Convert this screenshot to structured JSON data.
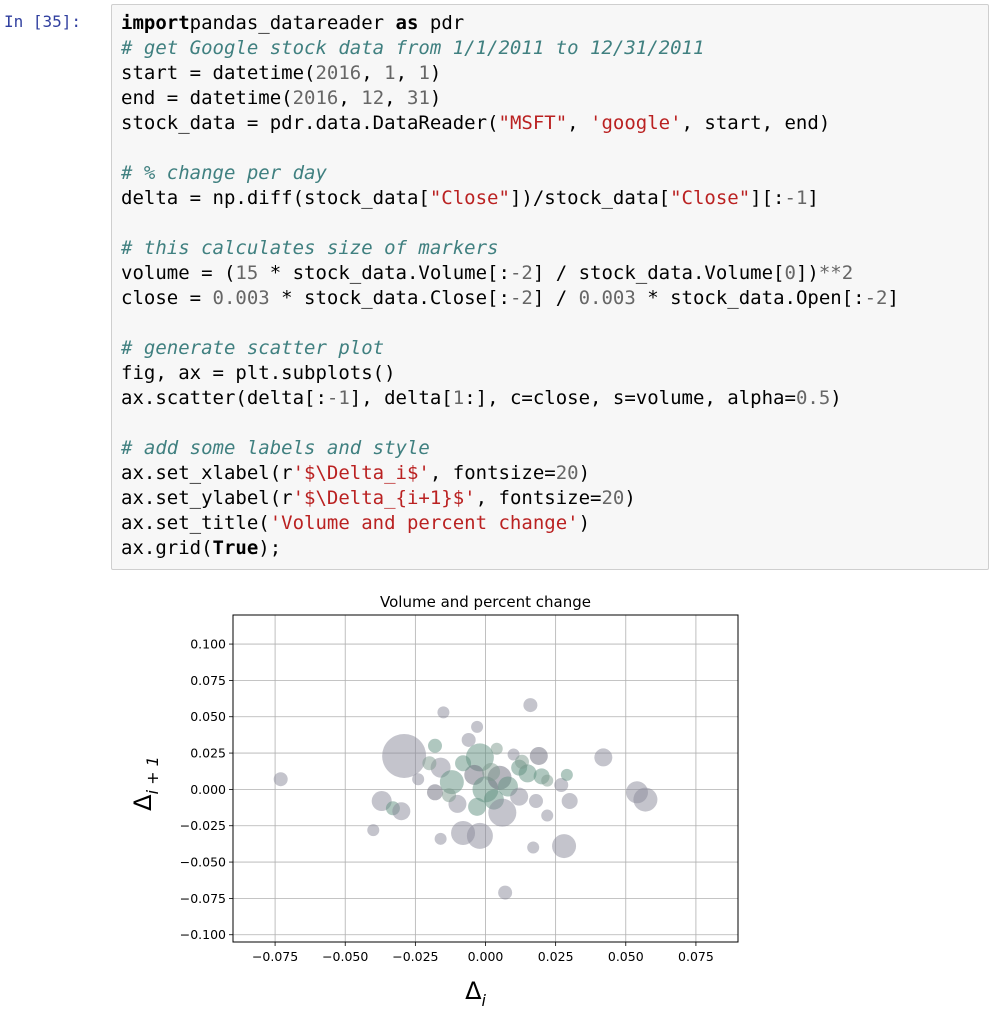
{
  "prompt": "In [35]:",
  "code_lines": [
    [
      [
        "kw2",
        "import"
      ],
      [
        "",
        "pandas_datareader"
      ],
      [
        "kw2",
        " as"
      ],
      [
        "",
        " pdr"
      ]
    ],
    [
      [
        "cm",
        "# get Google stock data from 1/1/2011 to 12/31/2011"
      ]
    ],
    [
      [
        "",
        "start = datetime("
      ],
      [
        "nb",
        "2016"
      ],
      [
        "",
        ", "
      ],
      [
        "nb",
        "1"
      ],
      [
        "",
        ", "
      ],
      [
        "nb",
        "1"
      ],
      [
        "",
        ")"
      ]
    ],
    [
      [
        "",
        "end = datetime("
      ],
      [
        "nb",
        "2016"
      ],
      [
        "",
        ", "
      ],
      [
        "nb",
        "12"
      ],
      [
        "",
        ", "
      ],
      [
        "nb",
        "31"
      ],
      [
        "",
        ")"
      ]
    ],
    [
      [
        "",
        "stock_data = pdr.data.DataReader("
      ],
      [
        "st",
        "\"MSFT\""
      ],
      [
        "",
        ", "
      ],
      [
        "st",
        "'google'"
      ],
      [
        "",
        ", start, end)"
      ]
    ],
    [
      [
        "",
        ""
      ]
    ],
    [
      [
        "cm",
        "# % change per day"
      ]
    ],
    [
      [
        "",
        "delta = np.diff(stock_data["
      ],
      [
        "st",
        "\"Close\""
      ],
      [
        "",
        "])/stock_data["
      ],
      [
        "st",
        "\"Close\""
      ],
      [
        "",
        "][:"
      ],
      [
        "nb",
        "-1"
      ],
      [
        "",
        "]"
      ]
    ],
    [
      [
        "",
        ""
      ]
    ],
    [
      [
        "cm",
        "# this calculates size of markers"
      ]
    ],
    [
      [
        "",
        "volume = ("
      ],
      [
        "nb",
        "15"
      ],
      [
        "",
        " * stock_data.Volume[:"
      ],
      [
        "nb",
        "-2"
      ],
      [
        "",
        "] / stock_data.Volume["
      ],
      [
        "nb",
        "0"
      ],
      [
        "",
        "])"
      ],
      [
        "op",
        "**"
      ],
      [
        "nb",
        "2"
      ]
    ],
    [
      [
        "",
        "close = "
      ],
      [
        "nb",
        "0.003"
      ],
      [
        "",
        " * stock_data.Close[:"
      ],
      [
        "nb",
        "-2"
      ],
      [
        "",
        "] / "
      ],
      [
        "nb",
        "0.003"
      ],
      [
        "",
        " * stock_data.Open[:"
      ],
      [
        "nb",
        "-2"
      ],
      [
        "",
        "]"
      ]
    ],
    [
      [
        "",
        ""
      ]
    ],
    [
      [
        "cm",
        "# generate scatter plot"
      ]
    ],
    [
      [
        "",
        "fig, ax = plt.subplots()"
      ]
    ],
    [
      [
        "",
        "ax.scatter(delta[:"
      ],
      [
        "nb",
        "-1"
      ],
      [
        "",
        "], delta["
      ],
      [
        "nb",
        "1"
      ],
      [
        "",
        ":], c=close, s=volume, alpha="
      ],
      [
        "nb",
        "0.5"
      ],
      [
        "",
        ")"
      ]
    ],
    [
      [
        "",
        ""
      ]
    ],
    [
      [
        "cm",
        "# add some labels and style"
      ]
    ],
    [
      [
        "",
        "ax.set_xlabel(r"
      ],
      [
        "st",
        "'$\\Delta_i$'"
      ],
      [
        "",
        ", fontsize="
      ],
      [
        "nb",
        "20"
      ],
      [
        "",
        ")"
      ]
    ],
    [
      [
        "",
        "ax.set_ylabel(r"
      ],
      [
        "st",
        "'$\\Delta_{i+1}$'"
      ],
      [
        "",
        ", fontsize="
      ],
      [
        "nb",
        "20"
      ],
      [
        "",
        ")"
      ]
    ],
    [
      [
        "",
        "ax.set_title("
      ],
      [
        "st",
        "'Volume and percent change'"
      ],
      [
        "",
        ")"
      ]
    ],
    [
      [
        "",
        "ax.grid("
      ],
      [
        "kw2",
        "True"
      ],
      [
        "",
        ");"
      ]
    ]
  ],
  "chart_data": {
    "type": "scatter",
    "title": "Volume and percent change",
    "xlabel_base": "Δ",
    "xlabel_sub": "i",
    "ylabel_base": "Δ",
    "ylabel_sub": "i + 1",
    "xlim": [
      -0.09,
      0.09
    ],
    "ylim": [
      -0.105,
      0.12
    ],
    "xticks": [
      -0.075,
      -0.05,
      -0.025,
      0.0,
      0.025,
      0.05,
      0.075
    ],
    "xtick_labels": [
      "−0.075",
      "−0.050",
      "−0.025",
      "0.000",
      "0.025",
      "0.050",
      "0.075"
    ],
    "yticks": [
      0.1,
      0.075,
      0.05,
      0.025,
      0.0,
      -0.025,
      -0.05,
      -0.075,
      -0.1
    ],
    "ytick_labels": [
      "0.100",
      "0.075",
      "0.050",
      "0.025",
      "0.000",
      "−0.025",
      "−0.050",
      "−0.075",
      "−0.100"
    ],
    "grid": true,
    "marker_alpha": 0.5,
    "colors": [
      "#8a8a9a",
      "#5f8f7f",
      "#6b6b7b",
      "#7e9a8e"
    ],
    "points": [
      {
        "x": -0.073,
        "y": 0.007,
        "s": 7,
        "c": 0
      },
      {
        "x": -0.029,
        "y": 0.023,
        "s": 22,
        "c": 0
      },
      {
        "x": -0.037,
        "y": -0.008,
        "s": 10,
        "c": 0
      },
      {
        "x": -0.033,
        "y": -0.013,
        "s": 7,
        "c": 1
      },
      {
        "x": -0.04,
        "y": -0.028,
        "s": 6,
        "c": 0
      },
      {
        "x": -0.03,
        "y": -0.015,
        "s": 9,
        "c": 0
      },
      {
        "x": -0.024,
        "y": 0.007,
        "s": 6,
        "c": 0
      },
      {
        "x": -0.018,
        "y": -0.002,
        "s": 8,
        "c": 2
      },
      {
        "x": -0.015,
        "y": 0.053,
        "s": 6,
        "c": 0
      },
      {
        "x": -0.018,
        "y": 0.03,
        "s": 7,
        "c": 1
      },
      {
        "x": -0.016,
        "y": 0.015,
        "s": 10,
        "c": 0
      },
      {
        "x": -0.012,
        "y": 0.005,
        "s": 12,
        "c": 1
      },
      {
        "x": -0.01,
        "y": -0.01,
        "s": 9,
        "c": 0
      },
      {
        "x": -0.016,
        "y": -0.034,
        "s": 6,
        "c": 0
      },
      {
        "x": -0.008,
        "y": -0.03,
        "s": 12,
        "c": 0
      },
      {
        "x": -0.006,
        "y": 0.034,
        "s": 7,
        "c": 0
      },
      {
        "x": -0.003,
        "y": 0.043,
        "s": 6,
        "c": 0
      },
      {
        "x": -0.002,
        "y": 0.022,
        "s": 14,
        "c": 1
      },
      {
        "x": -0.004,
        "y": 0.01,
        "s": 10,
        "c": 2
      },
      {
        "x": 0.0,
        "y": 0.0,
        "s": 13,
        "c": 1
      },
      {
        "x": -0.003,
        "y": -0.012,
        "s": 9,
        "c": 1
      },
      {
        "x": -0.002,
        "y": -0.032,
        "s": 13,
        "c": 0
      },
      {
        "x": 0.003,
        "y": -0.007,
        "s": 10,
        "c": 1
      },
      {
        "x": 0.005,
        "y": 0.008,
        "s": 12,
        "c": 2
      },
      {
        "x": 0.006,
        "y": -0.016,
        "s": 14,
        "c": 0
      },
      {
        "x": 0.008,
        "y": 0.002,
        "s": 10,
        "c": 1
      },
      {
        "x": 0.01,
        "y": 0.024,
        "s": 6,
        "c": 0
      },
      {
        "x": 0.012,
        "y": 0.015,
        "s": 8,
        "c": 1
      },
      {
        "x": 0.012,
        "y": -0.005,
        "s": 9,
        "c": 0
      },
      {
        "x": 0.015,
        "y": 0.011,
        "s": 9,
        "c": 1
      },
      {
        "x": 0.016,
        "y": 0.058,
        "s": 7,
        "c": 0
      },
      {
        "x": 0.019,
        "y": 0.023,
        "s": 9,
        "c": 2
      },
      {
        "x": 0.02,
        "y": 0.009,
        "s": 8,
        "c": 1
      },
      {
        "x": 0.018,
        "y": -0.008,
        "s": 7,
        "c": 0
      },
      {
        "x": 0.022,
        "y": -0.018,
        "s": 6,
        "c": 0
      },
      {
        "x": 0.017,
        "y": -0.04,
        "s": 6,
        "c": 0
      },
      {
        "x": 0.027,
        "y": 0.003,
        "s": 7,
        "c": 0
      },
      {
        "x": 0.028,
        "y": -0.039,
        "s": 12,
        "c": 0
      },
      {
        "x": 0.03,
        "y": -0.008,
        "s": 8,
        "c": 0
      },
      {
        "x": 0.029,
        "y": 0.01,
        "s": 6,
        "c": 1
      },
      {
        "x": 0.042,
        "y": 0.022,
        "s": 9,
        "c": 0
      },
      {
        "x": 0.054,
        "y": -0.002,
        "s": 11,
        "c": 0
      },
      {
        "x": 0.057,
        "y": -0.007,
        "s": 12,
        "c": 0
      },
      {
        "x": 0.007,
        "y": -0.071,
        "s": 7,
        "c": 0
      },
      {
        "x": -0.008,
        "y": 0.018,
        "s": 8,
        "c": 1
      },
      {
        "x": 0.002,
        "y": 0.012,
        "s": 9,
        "c": 3
      },
      {
        "x": -0.013,
        "y": -0.004,
        "s": 7,
        "c": 3
      },
      {
        "x": 0.013,
        "y": 0.019,
        "s": 7,
        "c": 3
      },
      {
        "x": 0.022,
        "y": 0.006,
        "s": 6,
        "c": 3
      },
      {
        "x": -0.02,
        "y": 0.018,
        "s": 7,
        "c": 3
      },
      {
        "x": 0.004,
        "y": 0.028,
        "s": 6,
        "c": 3
      }
    ]
  }
}
